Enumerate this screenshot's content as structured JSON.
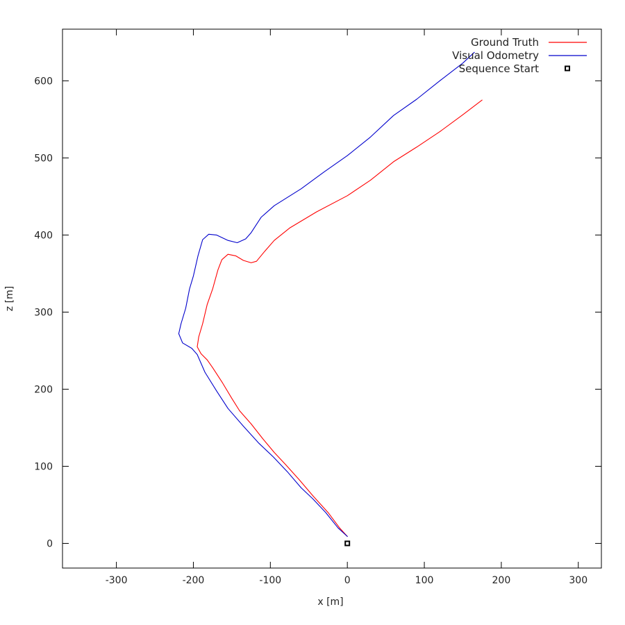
{
  "chart_data": {
    "type": "line",
    "xlabel": "x [m]",
    "ylabel": "z [m]",
    "xlim": [
      -370,
      330
    ],
    "ylim": [
      -32,
      667
    ],
    "x_ticks": [
      -300,
      -200,
      -100,
      0,
      100,
      200,
      300
    ],
    "x_tick_labels": [
      "-300",
      "-200",
      "-100",
      "0",
      "100",
      "200",
      "300"
    ],
    "y_ticks": [
      0,
      100,
      200,
      300,
      400,
      500,
      600
    ],
    "y_tick_labels": [
      "0",
      "100",
      "200",
      "300",
      "400",
      "500",
      "600"
    ],
    "grid": false,
    "legend_position": "top-right",
    "series": [
      {
        "name": "Ground Truth",
        "color": "#ff0000",
        "points": [
          [
            0,
            9
          ],
          [
            -10,
            20
          ],
          [
            -25,
            40
          ],
          [
            -45,
            62
          ],
          [
            -62,
            82
          ],
          [
            -80,
            102
          ],
          [
            -95,
            118
          ],
          [
            -110,
            136
          ],
          [
            -125,
            155
          ],
          [
            -140,
            172
          ],
          [
            -150,
            188
          ],
          [
            -162,
            208
          ],
          [
            -175,
            228
          ],
          [
            -182,
            238
          ],
          [
            -190,
            246
          ],
          [
            -195,
            255
          ],
          [
            -193,
            268
          ],
          [
            -188,
            285
          ],
          [
            -182,
            310
          ],
          [
            -175,
            330
          ],
          [
            -168,
            355
          ],
          [
            -163,
            368
          ],
          [
            -155,
            375
          ],
          [
            -145,
            373
          ],
          [
            -135,
            367
          ],
          [
            -125,
            364
          ],
          [
            -118,
            366
          ],
          [
            -108,
            378
          ],
          [
            -95,
            393
          ],
          [
            -75,
            409
          ],
          [
            -40,
            430
          ],
          [
            0,
            451
          ],
          [
            30,
            471
          ],
          [
            60,
            495
          ],
          [
            90,
            514
          ],
          [
            120,
            534
          ],
          [
            150,
            556
          ],
          [
            175,
            575
          ]
        ]
      },
      {
        "name": "Visual Odometry",
        "color": "#0000cc",
        "points": [
          [
            0,
            9
          ],
          [
            -12,
            20
          ],
          [
            -28,
            40
          ],
          [
            -45,
            58
          ],
          [
            -60,
            72
          ],
          [
            -78,
            93
          ],
          [
            -96,
            112
          ],
          [
            -115,
            130
          ],
          [
            -135,
            152
          ],
          [
            -155,
            175
          ],
          [
            -170,
            198
          ],
          [
            -185,
            222
          ],
          [
            -195,
            245
          ],
          [
            -202,
            253
          ],
          [
            -214,
            260
          ],
          [
            -219,
            272
          ],
          [
            -216,
            285
          ],
          [
            -210,
            305
          ],
          [
            -205,
            330
          ],
          [
            -200,
            347
          ],
          [
            -194,
            373
          ],
          [
            -188,
            394
          ],
          [
            -180,
            401
          ],
          [
            -170,
            400
          ],
          [
            -155,
            393
          ],
          [
            -143,
            390
          ],
          [
            -132,
            395
          ],
          [
            -125,
            403
          ],
          [
            -112,
            423
          ],
          [
            -95,
            438
          ],
          [
            -60,
            460
          ],
          [
            -30,
            482
          ],
          [
            0,
            503
          ],
          [
            30,
            527
          ],
          [
            60,
            555
          ],
          [
            90,
            576
          ],
          [
            120,
            600
          ],
          [
            150,
            623
          ],
          [
            165,
            637
          ]
        ]
      }
    ],
    "markers": [
      {
        "name": "Sequence Start",
        "shape": "square",
        "color": "#000000",
        "x": 0,
        "y": 0
      }
    ]
  }
}
